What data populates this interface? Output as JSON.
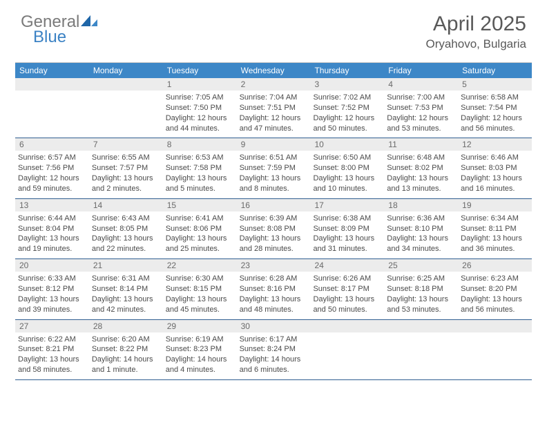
{
  "logo": {
    "general": "General",
    "blue": "Blue"
  },
  "title": {
    "month": "April 2025",
    "location": "Oryahovo, Bulgaria"
  },
  "colors": {
    "header_bg": "#3d87c7",
    "header_text": "#ffffff",
    "daynum_bg": "#ececec",
    "daynum_text": "#6a6a6a",
    "body_text": "#4a4a4a",
    "week_border": "#2f5d90",
    "logo_general": "#7a7a7a",
    "logo_blue": "#3b82c4",
    "title_color": "#595959"
  },
  "day_headers": [
    "Sunday",
    "Monday",
    "Tuesday",
    "Wednesday",
    "Thursday",
    "Friday",
    "Saturday"
  ],
  "weeks": [
    [
      {
        "empty": true
      },
      {
        "empty": true
      },
      {
        "num": "1",
        "sunrise": "Sunrise: 7:05 AM",
        "sunset": "Sunset: 7:50 PM",
        "daylight": "Daylight: 12 hours and 44 minutes."
      },
      {
        "num": "2",
        "sunrise": "Sunrise: 7:04 AM",
        "sunset": "Sunset: 7:51 PM",
        "daylight": "Daylight: 12 hours and 47 minutes."
      },
      {
        "num": "3",
        "sunrise": "Sunrise: 7:02 AM",
        "sunset": "Sunset: 7:52 PM",
        "daylight": "Daylight: 12 hours and 50 minutes."
      },
      {
        "num": "4",
        "sunrise": "Sunrise: 7:00 AM",
        "sunset": "Sunset: 7:53 PM",
        "daylight": "Daylight: 12 hours and 53 minutes."
      },
      {
        "num": "5",
        "sunrise": "Sunrise: 6:58 AM",
        "sunset": "Sunset: 7:54 PM",
        "daylight": "Daylight: 12 hours and 56 minutes."
      }
    ],
    [
      {
        "num": "6",
        "sunrise": "Sunrise: 6:57 AM",
        "sunset": "Sunset: 7:56 PM",
        "daylight": "Daylight: 12 hours and 59 minutes."
      },
      {
        "num": "7",
        "sunrise": "Sunrise: 6:55 AM",
        "sunset": "Sunset: 7:57 PM",
        "daylight": "Daylight: 13 hours and 2 minutes."
      },
      {
        "num": "8",
        "sunrise": "Sunrise: 6:53 AM",
        "sunset": "Sunset: 7:58 PM",
        "daylight": "Daylight: 13 hours and 5 minutes."
      },
      {
        "num": "9",
        "sunrise": "Sunrise: 6:51 AM",
        "sunset": "Sunset: 7:59 PM",
        "daylight": "Daylight: 13 hours and 8 minutes."
      },
      {
        "num": "10",
        "sunrise": "Sunrise: 6:50 AM",
        "sunset": "Sunset: 8:00 PM",
        "daylight": "Daylight: 13 hours and 10 minutes."
      },
      {
        "num": "11",
        "sunrise": "Sunrise: 6:48 AM",
        "sunset": "Sunset: 8:02 PM",
        "daylight": "Daylight: 13 hours and 13 minutes."
      },
      {
        "num": "12",
        "sunrise": "Sunrise: 6:46 AM",
        "sunset": "Sunset: 8:03 PM",
        "daylight": "Daylight: 13 hours and 16 minutes."
      }
    ],
    [
      {
        "num": "13",
        "sunrise": "Sunrise: 6:44 AM",
        "sunset": "Sunset: 8:04 PM",
        "daylight": "Daylight: 13 hours and 19 minutes."
      },
      {
        "num": "14",
        "sunrise": "Sunrise: 6:43 AM",
        "sunset": "Sunset: 8:05 PM",
        "daylight": "Daylight: 13 hours and 22 minutes."
      },
      {
        "num": "15",
        "sunrise": "Sunrise: 6:41 AM",
        "sunset": "Sunset: 8:06 PM",
        "daylight": "Daylight: 13 hours and 25 minutes."
      },
      {
        "num": "16",
        "sunrise": "Sunrise: 6:39 AM",
        "sunset": "Sunset: 8:08 PM",
        "daylight": "Daylight: 13 hours and 28 minutes."
      },
      {
        "num": "17",
        "sunrise": "Sunrise: 6:38 AM",
        "sunset": "Sunset: 8:09 PM",
        "daylight": "Daylight: 13 hours and 31 minutes."
      },
      {
        "num": "18",
        "sunrise": "Sunrise: 6:36 AM",
        "sunset": "Sunset: 8:10 PM",
        "daylight": "Daylight: 13 hours and 34 minutes."
      },
      {
        "num": "19",
        "sunrise": "Sunrise: 6:34 AM",
        "sunset": "Sunset: 8:11 PM",
        "daylight": "Daylight: 13 hours and 36 minutes."
      }
    ],
    [
      {
        "num": "20",
        "sunrise": "Sunrise: 6:33 AM",
        "sunset": "Sunset: 8:12 PM",
        "daylight": "Daylight: 13 hours and 39 minutes."
      },
      {
        "num": "21",
        "sunrise": "Sunrise: 6:31 AM",
        "sunset": "Sunset: 8:14 PM",
        "daylight": "Daylight: 13 hours and 42 minutes."
      },
      {
        "num": "22",
        "sunrise": "Sunrise: 6:30 AM",
        "sunset": "Sunset: 8:15 PM",
        "daylight": "Daylight: 13 hours and 45 minutes."
      },
      {
        "num": "23",
        "sunrise": "Sunrise: 6:28 AM",
        "sunset": "Sunset: 8:16 PM",
        "daylight": "Daylight: 13 hours and 48 minutes."
      },
      {
        "num": "24",
        "sunrise": "Sunrise: 6:26 AM",
        "sunset": "Sunset: 8:17 PM",
        "daylight": "Daylight: 13 hours and 50 minutes."
      },
      {
        "num": "25",
        "sunrise": "Sunrise: 6:25 AM",
        "sunset": "Sunset: 8:18 PM",
        "daylight": "Daylight: 13 hours and 53 minutes."
      },
      {
        "num": "26",
        "sunrise": "Sunrise: 6:23 AM",
        "sunset": "Sunset: 8:20 PM",
        "daylight": "Daylight: 13 hours and 56 minutes."
      }
    ],
    [
      {
        "num": "27",
        "sunrise": "Sunrise: 6:22 AM",
        "sunset": "Sunset: 8:21 PM",
        "daylight": "Daylight: 13 hours and 58 minutes."
      },
      {
        "num": "28",
        "sunrise": "Sunrise: 6:20 AM",
        "sunset": "Sunset: 8:22 PM",
        "daylight": "Daylight: 14 hours and 1 minute."
      },
      {
        "num": "29",
        "sunrise": "Sunrise: 6:19 AM",
        "sunset": "Sunset: 8:23 PM",
        "daylight": "Daylight: 14 hours and 4 minutes."
      },
      {
        "num": "30",
        "sunrise": "Sunrise: 6:17 AM",
        "sunset": "Sunset: 8:24 PM",
        "daylight": "Daylight: 14 hours and 6 minutes."
      },
      {
        "empty": true
      },
      {
        "empty": true
      },
      {
        "empty": true
      }
    ]
  ]
}
